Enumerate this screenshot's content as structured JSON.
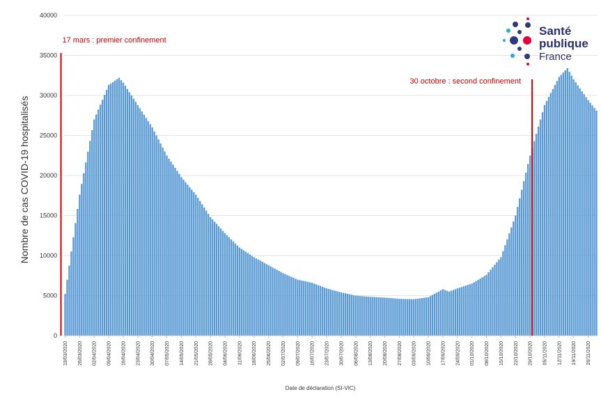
{
  "chart_data": {
    "type": "bar",
    "xlabel": "Date de déclaration (SI-VIC)",
    "ylabel": "Nombre de cas COVID-19 hospitalisés",
    "ylim": [
      0,
      40000
    ],
    "yticks": [
      "0",
      "5000",
      "10000",
      "15000",
      "20000",
      "25000",
      "30000",
      "35000",
      "40000"
    ],
    "grid": true,
    "bar_color": "#5b9bd5",
    "annotation_color": "#cc0000",
    "categories": [
      "19/03/2020",
      "26/03/2020",
      "02/04/2020",
      "09/04/2020",
      "16/04/2020",
      "23/04/2020",
      "30/04/2020",
      "07/05/2020",
      "14/05/2020",
      "21/05/2020",
      "28/05/2020",
      "04/06/2020",
      "11/06/2020",
      "18/06/2020",
      "25/06/2020",
      "02/07/2020",
      "09/07/2020",
      "16/07/2020",
      "23/07/2020",
      "30/07/2020",
      "06/08/2020",
      "13/08/2020",
      "20/08/2020",
      "27/08/2020",
      "03/09/2020",
      "10/09/2020",
      "17/09/2020",
      "24/09/2020",
      "01/10/2020",
      "08/10/2020",
      "15/10/2020",
      "22/10/2020",
      "29/10/2020",
      "05/11/2020",
      "12/11/2020",
      "19/11/2020",
      "26/11/2020"
    ],
    "series": [
      {
        "key_points": [
          [
            "19/03/2020",
            5200
          ],
          [
            "26/03/2020",
            17600
          ],
          [
            "02/04/2020",
            27000
          ],
          [
            "09/04/2020",
            31300
          ],
          [
            "14/04/2020",
            32200
          ],
          [
            "16/04/2020",
            31600
          ],
          [
            "23/04/2020",
            28800
          ],
          [
            "30/04/2020",
            26000
          ],
          [
            "07/05/2020",
            22500
          ],
          [
            "14/05/2020",
            19800
          ],
          [
            "21/05/2020",
            17600
          ],
          [
            "28/05/2020",
            14800
          ],
          [
            "04/06/2020",
            12800
          ],
          [
            "11/06/2020",
            11000
          ],
          [
            "18/06/2020",
            9800
          ],
          [
            "25/06/2020",
            8800
          ],
          [
            "02/07/2020",
            7800
          ],
          [
            "09/07/2020",
            7000
          ],
          [
            "16/07/2020",
            6600
          ],
          [
            "23/07/2020",
            5900
          ],
          [
            "30/07/2020",
            5400
          ],
          [
            "06/08/2020",
            5000
          ],
          [
            "13/08/2020",
            4850
          ],
          [
            "20/08/2020",
            4750
          ],
          [
            "27/08/2020",
            4600
          ],
          [
            "03/09/2020",
            4550
          ],
          [
            "10/09/2020",
            4800
          ],
          [
            "17/09/2020",
            5800
          ],
          [
            "20/09/2020",
            5500
          ],
          [
            "24/09/2020",
            5900
          ],
          [
            "01/10/2020",
            6500
          ],
          [
            "08/10/2020",
            7600
          ],
          [
            "15/10/2020",
            9800
          ],
          [
            "22/10/2020",
            15000
          ],
          [
            "29/10/2020",
            22500
          ],
          [
            "05/11/2020",
            28800
          ],
          [
            "12/11/2020",
            32300
          ],
          [
            "16/11/2020",
            33400
          ],
          [
            "19/11/2020",
            32000
          ],
          [
            "26/11/2020",
            29400
          ],
          [
            "30/11/2020",
            28100
          ]
        ]
      }
    ],
    "annotations": [
      {
        "date": "17/03/2020",
        "label": "17 mars : premier confinement"
      },
      {
        "date": "30/10/2020",
        "label": "30 octobre : second confinement"
      }
    ]
  },
  "logo": {
    "line1": "Santé",
    "line2": "publique",
    "line3": "France"
  }
}
